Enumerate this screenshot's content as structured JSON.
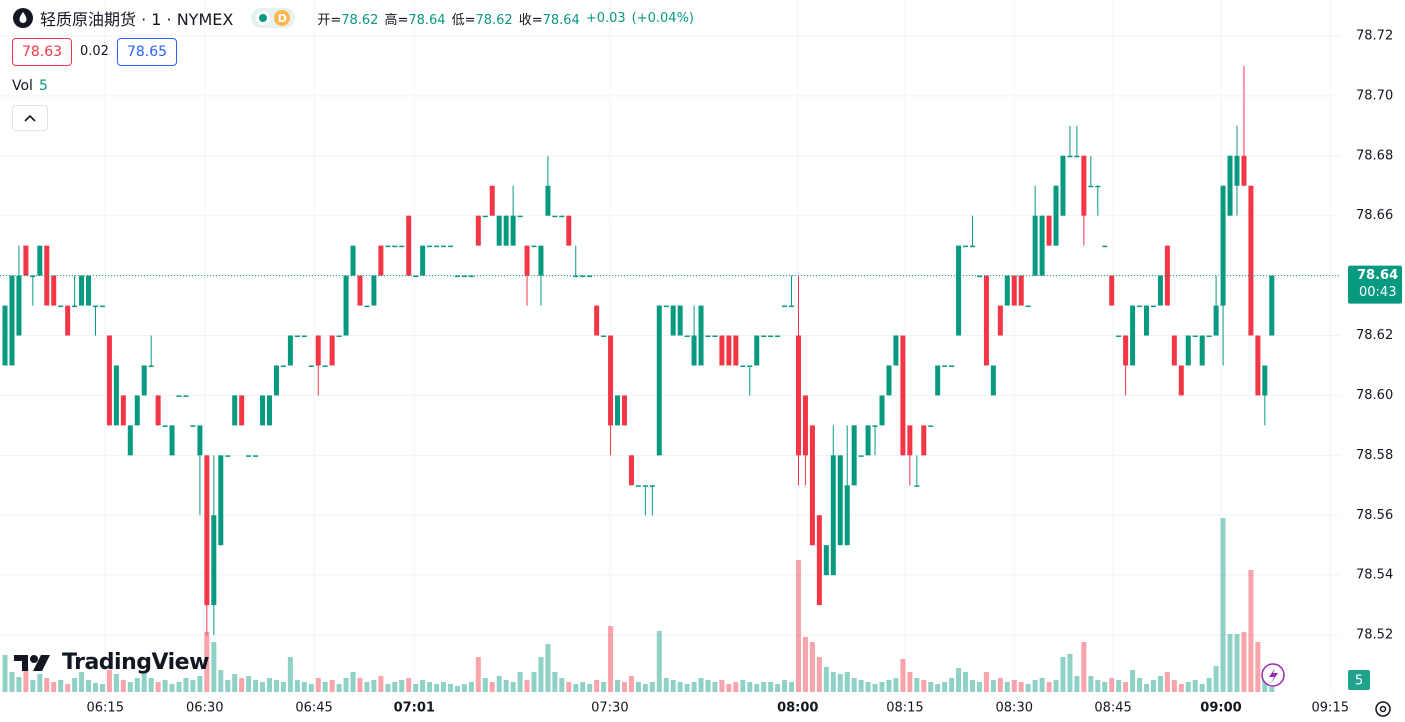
{
  "header": {
    "symbol": "轻质原油期货 · 1 · NYMEX",
    "badge": "D",
    "ohlc": [
      {
        "label": "开=",
        "value": 78.62
      },
      {
        "label": "高=",
        "value": 78.64
      },
      {
        "label": "低=",
        "value": 78.62
      },
      {
        "label": "收=",
        "value": 78.64
      }
    ],
    "change": "+0.03",
    "change_pct": "(+0.04%)",
    "bid": 78.63,
    "spread": 0.02,
    "ask": 78.65,
    "volume_label": "Vol"
  },
  "logo": "TradingView",
  "chart_data": {
    "type": "candlestick",
    "open": [
      78.61,
      78.61,
      78.62,
      78.65,
      78.64,
      78.64,
      78.65,
      78.64,
      78.63,
      78.63,
      78.63,
      78.63,
      78.63,
      78.63,
      78.63,
      78.62,
      78.59,
      78.6,
      78.58,
      78.59,
      78.6,
      78.61,
      78.6,
      78.59,
      78.58,
      78.6,
      78.6,
      78.59,
      78.58,
      78.58,
      78.53,
      78.55,
      78.58,
      78.59,
      78.6,
      78.58,
      78.58,
      78.59,
      78.59,
      78.6,
      78.61,
      78.61,
      78.62,
      78.62,
      78.61,
      78.62,
      78.61,
      78.62,
      78.62,
      78.62,
      78.64,
      78.64,
      78.63,
      78.63,
      78.65,
      78.65,
      78.65,
      78.65,
      78.66,
      78.64,
      78.64,
      78.65,
      78.65,
      78.65,
      78.65,
      78.64,
      78.64,
      78.64,
      78.66,
      78.66,
      78.67,
      78.65,
      78.65,
      78.65,
      78.66,
      78.65,
      78.65,
      78.64,
      78.66,
      78.66,
      78.66,
      78.66,
      78.64,
      78.64,
      78.64,
      78.63,
      78.62,
      78.62,
      78.59,
      78.6,
      78.58,
      78.57,
      78.57,
      78.57,
      78.58,
      78.63,
      78.62,
      78.62,
      78.62,
      78.61,
      78.61,
      78.62,
      78.62,
      78.62,
      78.62,
      78.62,
      78.61,
      78.61,
      78.61,
      78.62,
      78.62,
      78.62,
      78.63,
      78.63,
      78.62,
      78.6,
      78.59,
      78.56,
      78.54,
      78.54,
      78.55,
      78.55,
      78.57,
      78.58,
      78.58,
      78.59,
      78.59,
      78.6,
      78.61,
      78.62,
      78.59,
      78.57,
      78.59,
      78.59,
      78.6,
      78.61,
      78.61,
      78.62,
      78.65,
      78.65,
      78.64,
      78.64,
      78.6,
      78.63,
      78.63,
      78.64,
      78.64,
      78.63,
      78.64,
      78.64,
      78.66,
      78.65,
      78.66,
      78.68,
      78.68,
      78.68,
      78.67,
      78.67,
      78.65,
      78.64,
      78.62,
      78.62,
      78.61,
      78.63,
      78.62,
      78.63,
      78.63,
      78.65,
      78.62,
      78.61,
      78.61,
      78.62,
      78.61,
      78.62,
      78.62,
      78.63,
      78.66,
      78.67,
      78.68,
      78.67,
      78.62,
      78.6,
      78.62
    ],
    "high": [
      78.63,
      78.64,
      78.65,
      78.65,
      78.64,
      78.65,
      78.65,
      78.64,
      78.63,
      78.63,
      78.64,
      78.64,
      78.64,
      78.63,
      78.63,
      78.62,
      78.61,
      78.6,
      78.59,
      78.6,
      78.61,
      78.62,
      78.6,
      78.59,
      78.59,
      78.6,
      78.6,
      78.59,
      78.59,
      78.58,
      78.58,
      78.58,
      78.58,
      78.6,
      78.6,
      78.58,
      78.58,
      78.6,
      78.6,
      78.61,
      78.61,
      78.62,
      78.62,
      78.62,
      78.61,
      78.62,
      78.61,
      78.62,
      78.62,
      78.64,
      78.65,
      78.64,
      78.63,
      78.64,
      78.65,
      78.65,
      78.65,
      78.65,
      78.66,
      78.64,
      78.65,
      78.65,
      78.65,
      78.65,
      78.65,
      78.64,
      78.64,
      78.64,
      78.66,
      78.66,
      78.67,
      78.66,
      78.66,
      78.67,
      78.66,
      78.65,
      78.65,
      78.65,
      78.68,
      78.66,
      78.66,
      78.66,
      78.65,
      78.64,
      78.64,
      78.63,
      78.62,
      78.62,
      78.6,
      78.6,
      78.58,
      78.57,
      78.57,
      78.57,
      78.63,
      78.63,
      78.63,
      78.63,
      78.62,
      78.63,
      78.63,
      78.62,
      78.62,
      78.62,
      78.62,
      78.62,
      78.61,
      78.61,
      78.62,
      78.62,
      78.62,
      78.62,
      78.63,
      78.64,
      78.64,
      78.6,
      78.59,
      78.56,
      78.55,
      78.59,
      78.58,
      78.59,
      78.59,
      78.58,
      78.59,
      78.59,
      78.6,
      78.61,
      78.62,
      78.62,
      78.59,
      78.58,
      78.59,
      78.59,
      78.61,
      78.61,
      78.61,
      78.65,
      78.65,
      78.66,
      78.64,
      78.64,
      78.61,
      78.63,
      78.64,
      78.64,
      78.64,
      78.63,
      78.67,
      78.66,
      78.66,
      78.67,
      78.68,
      78.69,
      78.69,
      78.68,
      78.68,
      78.67,
      78.65,
      78.64,
      78.62,
      78.62,
      78.63,
      78.63,
      78.63,
      78.63,
      78.64,
      78.65,
      78.62,
      78.61,
      78.62,
      78.62,
      78.62,
      78.62,
      78.64,
      78.67,
      78.68,
      78.69,
      78.71,
      78.67,
      78.62,
      78.61,
      78.64
    ],
    "low": [
      78.61,
      78.61,
      78.62,
      78.64,
      78.63,
      78.64,
      78.63,
      78.63,
      78.63,
      78.62,
      78.63,
      78.63,
      78.63,
      78.62,
      78.63,
      78.59,
      78.59,
      78.59,
      78.58,
      78.59,
      78.6,
      78.61,
      78.59,
      78.59,
      78.58,
      78.6,
      78.6,
      78.59,
      78.56,
      78.52,
      78.52,
      78.55,
      78.58,
      78.59,
      78.59,
      78.58,
      78.58,
      78.59,
      78.59,
      78.6,
      78.61,
      78.61,
      78.62,
      78.62,
      78.61,
      78.6,
      78.61,
      78.61,
      78.62,
      78.62,
      78.64,
      78.63,
      78.63,
      78.63,
      78.64,
      78.65,
      78.65,
      78.65,
      78.64,
      78.64,
      78.64,
      78.65,
      78.65,
      78.65,
      78.65,
      78.64,
      78.64,
      78.64,
      78.65,
      78.66,
      78.66,
      78.65,
      78.65,
      78.65,
      78.66,
      78.63,
      78.65,
      78.63,
      78.66,
      78.66,
      78.66,
      78.65,
      78.64,
      78.64,
      78.64,
      78.62,
      78.62,
      78.58,
      78.59,
      78.59,
      78.57,
      78.57,
      78.56,
      78.56,
      78.58,
      78.63,
      78.62,
      78.62,
      78.62,
      78.61,
      78.61,
      78.62,
      78.62,
      78.61,
      78.61,
      78.61,
      78.61,
      78.6,
      78.61,
      78.62,
      78.62,
      78.62,
      78.63,
      78.63,
      78.57,
      78.57,
      78.55,
      78.53,
      78.54,
      78.54,
      78.55,
      78.55,
      78.57,
      78.58,
      78.58,
      78.58,
      78.59,
      78.6,
      78.61,
      78.58,
      78.57,
      78.57,
      78.58,
      78.59,
      78.6,
      78.61,
      78.61,
      78.62,
      78.65,
      78.65,
      78.64,
      78.61,
      78.6,
      78.62,
      78.63,
      78.63,
      78.63,
      78.63,
      78.64,
      78.64,
      78.65,
      78.65,
      78.66,
      78.68,
      78.68,
      78.65,
      78.67,
      78.66,
      78.65,
      78.63,
      78.62,
      78.6,
      78.61,
      78.63,
      78.62,
      78.63,
      78.63,
      78.63,
      78.61,
      78.6,
      78.61,
      78.62,
      78.61,
      78.62,
      78.62,
      78.61,
      78.66,
      78.66,
      78.67,
      78.62,
      78.6,
      78.59,
      78.62
    ],
    "close": [
      78.63,
      78.64,
      78.64,
      78.64,
      78.64,
      78.65,
      78.63,
      78.63,
      78.63,
      78.62,
      78.63,
      78.64,
      78.64,
      78.63,
      78.63,
      78.59,
      78.61,
      78.59,
      78.59,
      78.6,
      78.61,
      78.61,
      78.59,
      78.59,
      78.59,
      78.6,
      78.6,
      78.59,
      78.59,
      78.53,
      78.56,
      78.58,
      78.58,
      78.6,
      78.59,
      78.58,
      78.58,
      78.6,
      78.6,
      78.61,
      78.61,
      78.62,
      78.62,
      78.62,
      78.61,
      78.61,
      78.61,
      78.61,
      78.62,
      78.64,
      78.65,
      78.63,
      78.63,
      78.64,
      78.64,
      78.65,
      78.65,
      78.65,
      78.64,
      78.64,
      78.65,
      78.65,
      78.65,
      78.65,
      78.65,
      78.64,
      78.64,
      78.64,
      78.65,
      78.66,
      78.66,
      78.66,
      78.66,
      78.66,
      78.66,
      78.64,
      78.65,
      78.65,
      78.67,
      78.66,
      78.66,
      78.65,
      78.64,
      78.64,
      78.64,
      78.62,
      78.62,
      78.59,
      78.6,
      78.59,
      78.57,
      78.57,
      78.57,
      78.57,
      78.63,
      78.63,
      78.63,
      78.63,
      78.62,
      78.62,
      78.63,
      78.62,
      78.62,
      78.61,
      78.61,
      78.61,
      78.61,
      78.61,
      78.62,
      78.62,
      78.62,
      78.62,
      78.63,
      78.63,
      78.58,
      78.58,
      78.55,
      78.53,
      78.55,
      78.58,
      78.58,
      78.57,
      78.59,
      78.58,
      78.59,
      78.59,
      78.6,
      78.61,
      78.62,
      78.58,
      78.58,
      78.57,
      78.58,
      78.59,
      78.61,
      78.61,
      78.61,
      78.65,
      78.65,
      78.65,
      78.64,
      78.61,
      78.61,
      78.62,
      78.64,
      78.63,
      78.63,
      78.63,
      78.66,
      78.66,
      78.65,
      78.67,
      78.68,
      78.68,
      78.68,
      78.66,
      78.67,
      78.67,
      78.65,
      78.63,
      78.62,
      78.61,
      78.63,
      78.63,
      78.63,
      78.63,
      78.64,
      78.63,
      78.61,
      78.6,
      78.62,
      78.62,
      78.62,
      78.62,
      78.63,
      78.67,
      78.68,
      78.68,
      78.67,
      78.62,
      78.6,
      78.61,
      78.64
    ],
    "volume": [
      37,
      20,
      15,
      25,
      12,
      18,
      14,
      10,
      12,
      8,
      14,
      20,
      12,
      9,
      8,
      22,
      18,
      12,
      10,
      14,
      20,
      14,
      10,
      12,
      8,
      10,
      14,
      12,
      16,
      60,
      50,
      22,
      12,
      18,
      14,
      16,
      12,
      10,
      14,
      12,
      10,
      35,
      12,
      10,
      8,
      14,
      10,
      12,
      8,
      14,
      20,
      14,
      10,
      12,
      16,
      8,
      10,
      12,
      14,
      8,
      12,
      10,
      8,
      10,
      8,
      6,
      8,
      10,
      35,
      14,
      10,
      16,
      12,
      10,
      20,
      12,
      20,
      35,
      48,
      20,
      14,
      10,
      8,
      10,
      8,
      12,
      10,
      66,
      12,
      10,
      16,
      10,
      8,
      10,
      61,
      14,
      12,
      10,
      8,
      10,
      14,
      12,
      10,
      12,
      8,
      10,
      12,
      10,
      8,
      10,
      10,
      8,
      12,
      10,
      132,
      55,
      50,
      35,
      25,
      20,
      18,
      20,
      14,
      12,
      10,
      8,
      10,
      12,
      14,
      33,
      20,
      14,
      12,
      10,
      8,
      10,
      14,
      24,
      20,
      12,
      10,
      20,
      12,
      14,
      10,
      12,
      10,
      8,
      12,
      14,
      10,
      12,
      35,
      38,
      16,
      50,
      16,
      12,
      10,
      14,
      12,
      10,
      22,
      14,
      8,
      12,
      16,
      20,
      12,
      8,
      10,
      12,
      8,
      14,
      26,
      174,
      58,
      58,
      60,
      122,
      50,
      14,
      5
    ],
    "colors": {
      "up": "#089981",
      "down": "#f23645"
    },
    "ylim": [
      78.501,
      78.732
    ],
    "yticks": [
      78.52,
      78.54,
      78.56,
      78.58,
      {
        "value": 78.6,
        "label": "78.60"
      },
      78.62,
      78.64,
      78.66,
      78.68,
      {
        "value": 78.7,
        "label": "78.70"
      },
      78.72
    ],
    "xlim": [
      -0.72,
      191.8
    ],
    "xticks": [
      {
        "value": 14.4,
        "label": "06:15"
      },
      {
        "value": 28.7,
        "label": "06:30"
      },
      {
        "value": 44.4,
        "label": "06:45"
      },
      {
        "value": 58.8,
        "label": "07:01",
        "major": true
      },
      {
        "value": 86.9,
        "label": "07:30"
      },
      {
        "value": 113.9,
        "label": "08:00",
        "major": true
      },
      {
        "value": 129.3,
        "label": "08:15"
      },
      {
        "value": 145,
        "label": "08:30"
      },
      {
        "value": 159.2,
        "label": "08:45"
      },
      {
        "value": 174.7,
        "label": "09:00",
        "major": true
      },
      {
        "value": 190.4,
        "label": "09:15"
      }
    ],
    "last_price": {
      "value": 78.64,
      "countdown": "00:43"
    },
    "grid": true
  }
}
